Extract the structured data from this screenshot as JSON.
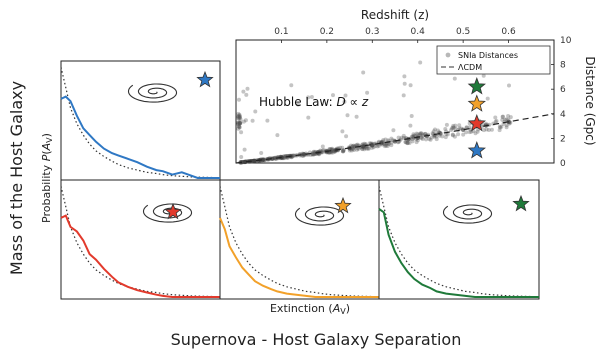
{
  "figure": {
    "outer_ylabel": "Mass of the Host Galaxy",
    "outer_xlabel": "Supernova - Host Galaxy Separation",
    "panel_xlabel": "Extinction (A_V)",
    "panel_ylabel": "Probability P(A_V)"
  },
  "colors": {
    "blue": "#2f78c4",
    "red": "#e23a2c",
    "orange": "#f2a12a",
    "green": "#1f7a3a",
    "points": "#555555"
  },
  "chart_data": [
    {
      "id": "hubble",
      "type": "scatter",
      "xlabel": "Redshift (z)",
      "ylabel": "Distance (Gpc)",
      "xlim": [
        0,
        0.7
      ],
      "ylim": [
        0,
        10
      ],
      "xticks": [
        "0.1",
        "0.2",
        "0.3",
        "0.4",
        "0.5",
        "0.6"
      ],
      "yticks": [
        "0",
        "2",
        "4",
        "6",
        "8",
        "10"
      ],
      "annotation": "Hubble Law: D ∝ z",
      "legend": [
        "SNIa Distances",
        "ΛCDM"
      ],
      "legend_position": "top-right",
      "series": [
        {
          "name": "SNIa Distances",
          "x": [
            0.01,
            0.02,
            0.03,
            0.04,
            0.05,
            0.06,
            0.08,
            0.1,
            0.12,
            0.15,
            0.18,
            0.2,
            0.22,
            0.25,
            0.28,
            0.3,
            0.32,
            0.35,
            0.38,
            0.4,
            0.42,
            0.45,
            0.5,
            0.55,
            0.6
          ],
          "y": [
            0.05,
            0.09,
            0.13,
            0.17,
            0.22,
            0.26,
            0.35,
            0.45,
            0.55,
            0.7,
            0.85,
            0.95,
            1.05,
            1.2,
            1.35,
            1.45,
            1.6,
            1.75,
            1.95,
            2.05,
            2.2,
            2.4,
            2.7,
            3.05,
            3.35
          ]
        },
        {
          "name": "ΛCDM",
          "x": [
            0.0,
            0.1,
            0.2,
            0.3,
            0.4,
            0.5,
            0.6,
            0.7
          ],
          "y": [
            0.0,
            0.45,
            0.95,
            1.5,
            2.1,
            2.7,
            3.35,
            4.0
          ]
        }
      ],
      "markers": [
        {
          "color": "green",
          "y": 6.2
        },
        {
          "color": "orange",
          "y": 4.8
        },
        {
          "color": "red",
          "y": 3.2
        },
        {
          "color": "blue",
          "y": 1.0
        }
      ]
    },
    {
      "id": "blue",
      "type": "line",
      "color": "blue",
      "x": [
        0.0,
        0.03,
        0.06,
        0.1,
        0.14,
        0.18,
        0.22,
        0.27,
        0.32,
        0.36,
        0.42,
        0.48,
        0.54,
        0.6,
        0.64,
        0.7,
        0.76,
        0.82,
        0.86,
        0.92,
        1.0
      ],
      "y": [
        0.7,
        0.72,
        0.68,
        0.55,
        0.44,
        0.38,
        0.32,
        0.26,
        0.22,
        0.2,
        0.17,
        0.14,
        0.1,
        0.07,
        0.06,
        0.03,
        0.05,
        0.02,
        0.0,
        0.0,
        0.0
      ],
      "reference": [
        0.98,
        0.8,
        0.62,
        0.48,
        0.38,
        0.3,
        0.24,
        0.19,
        0.15,
        0.12,
        0.09,
        0.07,
        0.05,
        0.04,
        0.03,
        0.02,
        0.015,
        0.01,
        0.008,
        0.005,
        0.003
      ]
    },
    {
      "id": "red",
      "type": "line",
      "color": "red",
      "x": [
        0.0,
        0.03,
        0.06,
        0.1,
        0.14,
        0.18,
        0.22,
        0.27,
        0.32,
        0.36,
        0.42,
        0.48,
        0.54,
        0.6,
        0.64,
        0.7,
        0.76,
        0.82,
        0.86,
        0.92,
        1.0
      ],
      "y": [
        0.7,
        0.72,
        0.62,
        0.58,
        0.5,
        0.38,
        0.33,
        0.25,
        0.18,
        0.13,
        0.09,
        0.06,
        0.04,
        0.02,
        0.01,
        0.0,
        0.0,
        0.0,
        0.0,
        0.0,
        0.0
      ],
      "reference": [
        0.98,
        0.8,
        0.62,
        0.48,
        0.38,
        0.3,
        0.24,
        0.19,
        0.15,
        0.12,
        0.09,
        0.07,
        0.05,
        0.04,
        0.03,
        0.02,
        0.015,
        0.01,
        0.008,
        0.005,
        0.003
      ]
    },
    {
      "id": "orange",
      "type": "line",
      "color": "orange",
      "x": [
        0.0,
        0.03,
        0.06,
        0.1,
        0.14,
        0.18,
        0.22,
        0.27,
        0.32,
        0.36,
        0.42,
        0.48,
        0.54,
        0.6,
        0.64,
        0.7,
        0.76,
        0.82,
        0.86,
        0.92,
        1.0
      ],
      "y": [
        0.7,
        0.6,
        0.45,
        0.35,
        0.26,
        0.2,
        0.14,
        0.1,
        0.07,
        0.05,
        0.03,
        0.02,
        0.01,
        0.0,
        0.0,
        0.0,
        0.0,
        0.0,
        0.0,
        0.0,
        0.0
      ],
      "reference": [
        0.98,
        0.8,
        0.62,
        0.48,
        0.38,
        0.3,
        0.24,
        0.19,
        0.15,
        0.12,
        0.09,
        0.07,
        0.05,
        0.04,
        0.03,
        0.02,
        0.015,
        0.01,
        0.008,
        0.005,
        0.003
      ]
    },
    {
      "id": "green",
      "type": "line",
      "color": "green",
      "x": [
        0.0,
        0.03,
        0.06,
        0.1,
        0.14,
        0.18,
        0.22,
        0.27,
        0.32,
        0.36,
        0.42,
        0.48,
        0.54,
        0.6,
        0.64,
        0.7,
        0.76,
        0.82,
        0.86,
        0.92,
        1.0
      ],
      "y": [
        0.78,
        0.75,
        0.55,
        0.4,
        0.3,
        0.22,
        0.16,
        0.11,
        0.08,
        0.05,
        0.03,
        0.02,
        0.01,
        0.0,
        0.0,
        0.0,
        0.0,
        0.0,
        0.0,
        0.0,
        0.0
      ],
      "reference": [
        0.98,
        0.8,
        0.62,
        0.48,
        0.38,
        0.3,
        0.24,
        0.19,
        0.15,
        0.12,
        0.09,
        0.07,
        0.05,
        0.04,
        0.03,
        0.02,
        0.015,
        0.01,
        0.008,
        0.005,
        0.003
      ]
    }
  ]
}
